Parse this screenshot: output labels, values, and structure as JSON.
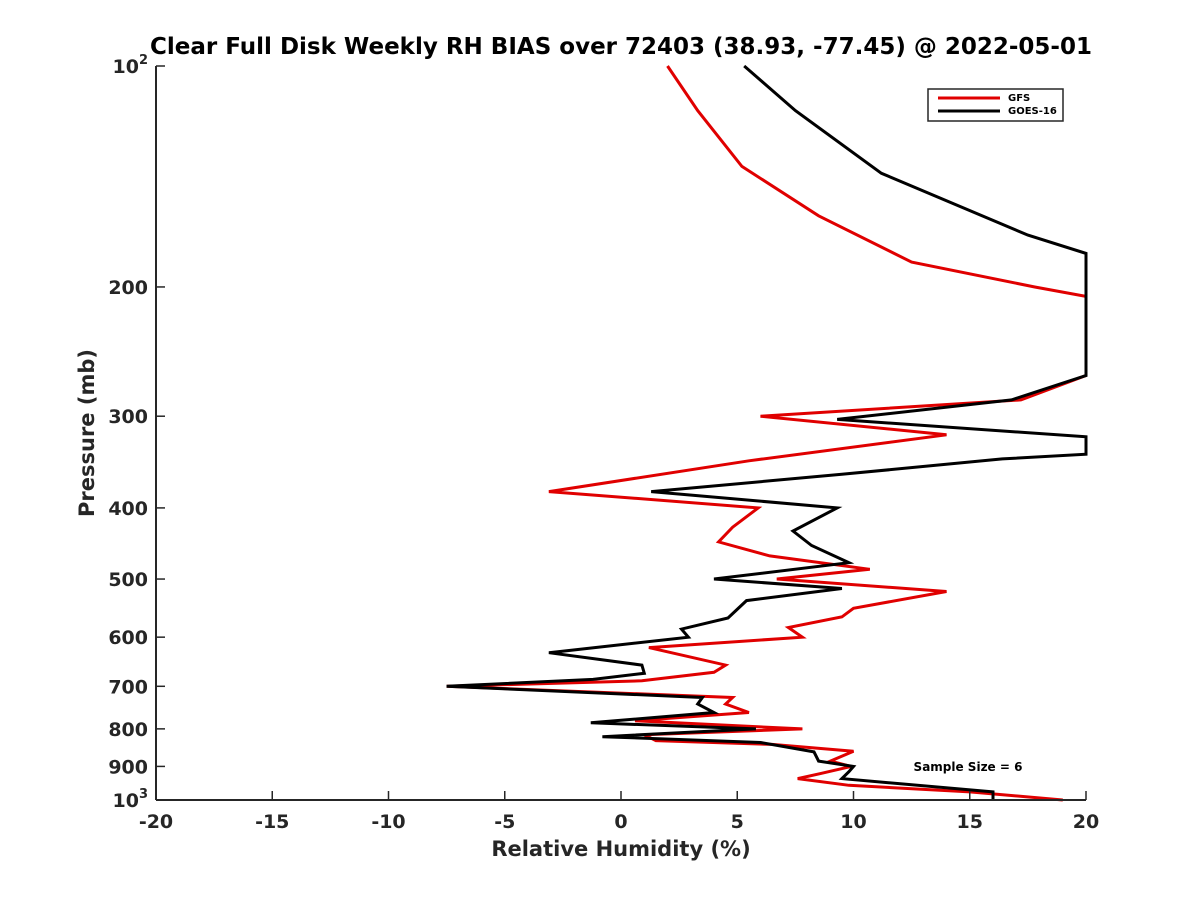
{
  "chart_data": {
    "type": "line",
    "title": "Clear Full Disk Weekly RH BIAS over 72403 (38.93, -77.45) @ 2022-05-01",
    "xlabel": "Relative Humidity (%)",
    "ylabel": "Pressure (mb)",
    "xlim": [
      -20,
      20
    ],
    "ylim": [
      100,
      1000
    ],
    "y_scale": "log",
    "y_reversed": true,
    "x_ticks": [
      "-20",
      "-15",
      "-10",
      "-5",
      "0",
      "5",
      "10",
      "15",
      "20"
    ],
    "y_ticks": [
      {
        "value": 100,
        "base": "10",
        "exp": "2"
      },
      {
        "value": 200,
        "label": "200"
      },
      {
        "value": 300,
        "label": "300"
      },
      {
        "value": 400,
        "label": "400"
      },
      {
        "value": 500,
        "label": "500"
      },
      {
        "value": 600,
        "label": "600"
      },
      {
        "value": 700,
        "label": "700"
      },
      {
        "value": 800,
        "label": "800"
      },
      {
        "value": 900,
        "label": "900"
      },
      {
        "value": 1000,
        "base": "10",
        "exp": "3"
      }
    ],
    "grid": false,
    "legend_position": "top-right",
    "annotation": "Sample Size = 6",
    "series": [
      {
        "name": "GFS",
        "color": "#e00000",
        "points": [
          [
            2.0,
            100
          ],
          [
            3.3,
            115
          ],
          [
            5.2,
            137
          ],
          [
            8.5,
            160
          ],
          [
            12.5,
            185
          ],
          [
            17.8,
            200
          ],
          [
            20.5,
            206
          ],
          [
            20.4,
            264
          ],
          [
            17.2,
            285
          ],
          [
            6.0,
            300
          ],
          [
            14.0,
            318
          ],
          [
            5.5,
            345
          ],
          [
            -3.1,
            380
          ],
          [
            5.9,
            400
          ],
          [
            4.8,
            425
          ],
          [
            4.2,
            445
          ],
          [
            6.4,
            465
          ],
          [
            10.7,
            485
          ],
          [
            6.7,
            500
          ],
          [
            14.0,
            520
          ],
          [
            10.0,
            548
          ],
          [
            9.5,
            563
          ],
          [
            7.2,
            582
          ],
          [
            7.8,
            600
          ],
          [
            1.2,
            620
          ],
          [
            4.5,
            655
          ],
          [
            4.0,
            670
          ],
          [
            0.9,
            688
          ],
          [
            -7.5,
            700
          ],
          [
            4.8,
            725
          ],
          [
            4.5,
            740
          ],
          [
            5.5,
            760
          ],
          [
            0.6,
            780
          ],
          [
            7.8,
            800
          ],
          [
            1.0,
            815
          ],
          [
            1.5,
            830
          ],
          [
            6.5,
            840
          ],
          [
            10.0,
            858
          ],
          [
            9.0,
            885
          ],
          [
            9.9,
            900
          ],
          [
            8.6,
            920
          ],
          [
            7.6,
            935
          ],
          [
            9.8,
            955
          ],
          [
            15.0,
            975
          ],
          [
            19.0,
            1000
          ]
        ]
      },
      {
        "name": "GOES-16",
        "color": "#000000",
        "points": [
          [
            5.3,
            100
          ],
          [
            7.5,
            115
          ],
          [
            11.2,
            140
          ],
          [
            17.5,
            170
          ],
          [
            20.5,
            180
          ],
          [
            20.3,
            264
          ],
          [
            16.8,
            285
          ],
          [
            9.3,
            303
          ],
          [
            20.3,
            320
          ],
          [
            20.2,
            338
          ],
          [
            16.4,
            343
          ],
          [
            9.5,
            360
          ],
          [
            1.3,
            380
          ],
          [
            9.3,
            400
          ],
          [
            7.4,
            430
          ],
          [
            8.2,
            450
          ],
          [
            9.8,
            475
          ],
          [
            4.0,
            500
          ],
          [
            9.5,
            515
          ],
          [
            5.4,
            535
          ],
          [
            4.6,
            565
          ],
          [
            2.6,
            585
          ],
          [
            2.9,
            600
          ],
          [
            -3.1,
            630
          ],
          [
            0.9,
            655
          ],
          [
            1.0,
            672
          ],
          [
            -1.2,
            685
          ],
          [
            -7.5,
            700
          ],
          [
            3.5,
            725
          ],
          [
            3.3,
            740
          ],
          [
            4.0,
            760
          ],
          [
            -1.3,
            785
          ],
          [
            5.8,
            800
          ],
          [
            -0.8,
            820
          ],
          [
            6.0,
            835
          ],
          [
            8.3,
            860
          ],
          [
            8.5,
            885
          ],
          [
            10.0,
            900
          ],
          [
            9.8,
            915
          ],
          [
            9.5,
            935
          ],
          [
            16.0,
            975
          ],
          [
            16.0,
            1000
          ]
        ]
      }
    ]
  }
}
